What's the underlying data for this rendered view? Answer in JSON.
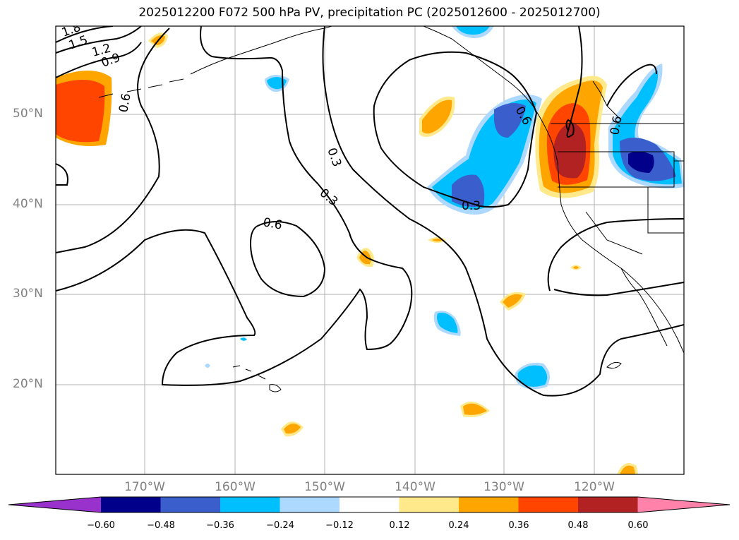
{
  "title": "2025012200 F072 500 hPa PV, precipitation PC (2025012600 - 2025012700)",
  "map": {
    "lat_labels": [
      {
        "text": "50°N",
        "lat": 50
      },
      {
        "text": "40°N",
        "lat": 40
      },
      {
        "text": "30°N",
        "lat": 30
      },
      {
        "text": "20°N",
        "lat": 20
      }
    ],
    "lon_labels": [
      {
        "text": "170°W",
        "lon": -170
      },
      {
        "text": "160°W",
        "lon": -160
      },
      {
        "text": "150°W",
        "lon": -150
      },
      {
        "text": "140°W",
        "lon": -140
      },
      {
        "text": "130°W",
        "lon": -130
      },
      {
        "text": "120°W",
        "lon": -120
      }
    ],
    "contour_labels": [
      "1.8",
      "1.5",
      "1.2",
      "0.9",
      "0.6",
      "0.3",
      "0.3",
      "0.6",
      "0.3",
      "0.6",
      "0.6"
    ]
  },
  "colorbar": {
    "ticks": [
      "−0.60",
      "−0.48",
      "−0.36",
      "−0.24",
      "−0.12",
      "0.12",
      "0.24",
      "0.36",
      "0.48",
      "0.60"
    ],
    "colors": [
      "#9932cc",
      "#00008b",
      "#3a5fcd",
      "#00bfff",
      "#add8ff",
      "#ffffff",
      "#ffe98a",
      "#ffa500",
      "#ff4500",
      "#b22222",
      "#ff82ab"
    ]
  },
  "colors": {
    "grid": "#b0b0b0",
    "contour": "#000000",
    "label": "#808080"
  }
}
